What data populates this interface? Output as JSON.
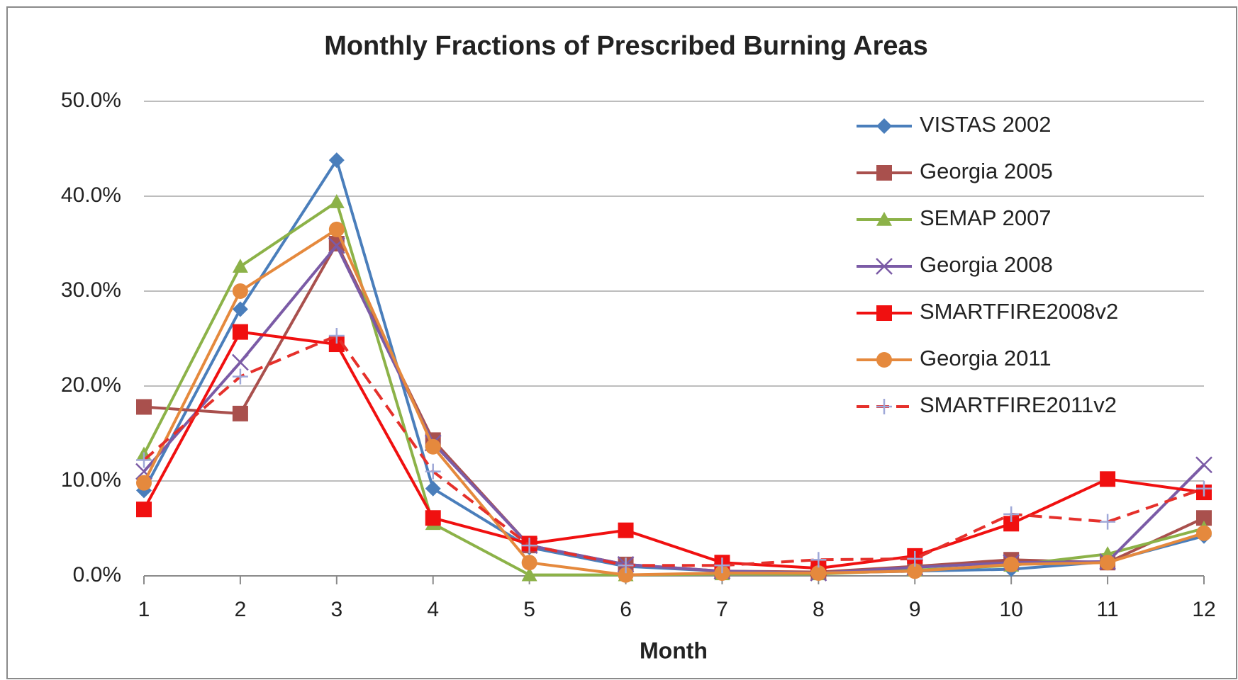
{
  "chart_data": {
    "type": "line",
    "title": "Monthly Fractions of Prescribed Burning Areas",
    "x_label": "Month",
    "x": [
      1,
      2,
      3,
      4,
      5,
      6,
      7,
      8,
      9,
      10,
      11,
      12
    ],
    "xlim": [
      1,
      12
    ],
    "xticks": [
      1,
      2,
      3,
      4,
      5,
      6,
      7,
      8,
      9,
      10,
      11,
      12
    ],
    "ylim": [
      0,
      50
    ],
    "yticks": [
      {
        "value": 0,
        "label": "0.0%"
      },
      {
        "value": 10,
        "label": "10.0%"
      },
      {
        "value": 20,
        "label": "20.0%"
      },
      {
        "value": 30,
        "label": "30.0%"
      },
      {
        "value": 40,
        "label": "40.0%"
      },
      {
        "value": 50,
        "label": "50.0%"
      }
    ],
    "grid": true,
    "legend": "upper right",
    "series": [
      {
        "name": "VISTAS 2002",
        "color": "#4a7ebb",
        "marker": "diamond",
        "dash": false,
        "values": [
          9.0,
          28.1,
          43.8,
          9.2,
          3.0,
          1.0,
          0.5,
          0.3,
          0.5,
          0.7,
          1.5,
          4.2
        ]
      },
      {
        "name": "Georgia 2005",
        "color": "#a9504d",
        "marker": "square",
        "dash": false,
        "values": [
          17.8,
          17.1,
          35.0,
          14.3,
          3.2,
          1.2,
          0.5,
          0.4,
          1.0,
          1.7,
          1.4,
          6.1
        ]
      },
      {
        "name": "SEMAP 2007",
        "color": "#8cb248",
        "marker": "triangle",
        "dash": false,
        "values": [
          12.8,
          32.6,
          39.4,
          5.5,
          0.1,
          0.1,
          0.2,
          0.2,
          0.6,
          1.1,
          2.3,
          5.0
        ]
      },
      {
        "name": "Georgia 2008",
        "color": "#7b5ba6",
        "marker": "x",
        "dash": false,
        "values": [
          11.0,
          22.5,
          34.8,
          14.0,
          3.2,
          1.2,
          0.5,
          0.3,
          0.9,
          1.4,
          1.5,
          11.7
        ]
      },
      {
        "name": "SMARTFIRE2008v2",
        "color": "#f01010",
        "marker": "square",
        "dash": false,
        "values": [
          7.0,
          25.7,
          24.4,
          6.1,
          3.4,
          4.8,
          1.4,
          0.8,
          2.1,
          5.5,
          10.2,
          8.8
        ]
      },
      {
        "name": "Georgia 2011",
        "color": "#e5893d",
        "marker": "circle",
        "dash": false,
        "values": [
          9.8,
          30.0,
          36.5,
          13.6,
          1.4,
          0.1,
          0.3,
          0.3,
          0.5,
          1.2,
          1.4,
          4.5
        ]
      },
      {
        "name": "SMARTFIRE2011v2",
        "color": "#e5302b",
        "marker": "plus",
        "dash": true,
        "values": [
          12.2,
          21.0,
          25.3,
          11.0,
          3.2,
          1.1,
          1.1,
          1.7,
          1.8,
          6.5,
          5.7,
          9.2
        ]
      }
    ]
  }
}
